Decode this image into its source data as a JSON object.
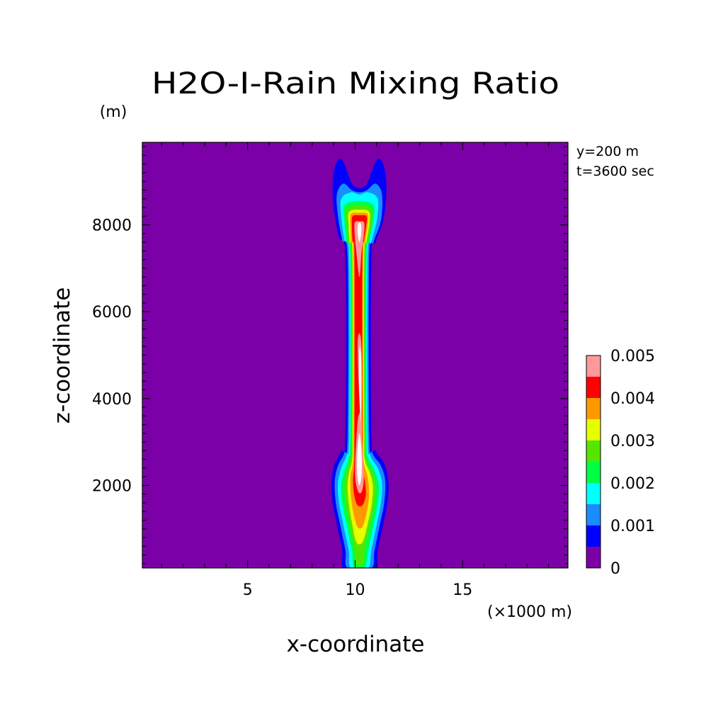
{
  "chart_data": {
    "type": "heatmap",
    "title": "H2O-I-Rain Mixing Ratio",
    "xlabel": "x-coordinate",
    "ylabel": "z-coordinate",
    "x_unit": "(×1000 m)",
    "y_unit": "(m)",
    "annotations": [
      "y=200 m",
      "t=3600 sec"
    ],
    "xlim": [
      0.1,
      19.9
    ],
    "ylim": [
      100,
      9900
    ],
    "x_ticks": [
      5,
      10,
      15
    ],
    "y_ticks": [
      2000,
      4000,
      6000,
      8000
    ],
    "x_minor_step": 1,
    "y_minor_step": 200,
    "grid": false,
    "colorbar": {
      "levels": [
        0,
        0.0005,
        0.001,
        0.0015,
        0.002,
        0.0025,
        0.003,
        0.0035,
        0.004,
        0.0045,
        0.005
      ],
      "colors": [
        "#7b00a8",
        "#0000ff",
        "#1a8cff",
        "#00ffff",
        "#00ff44",
        "#55e600",
        "#e6ff00",
        "#ff9900",
        "#ff0000",
        "#ff9999"
      ],
      "tick_labels": [
        "0",
        "0.001",
        "0.002",
        "0.003",
        "0.004",
        "0.005"
      ],
      "tick_values": [
        0,
        0.001,
        0.002,
        0.003,
        0.004,
        0.005
      ],
      "location": "right"
    },
    "background_color": "#7b00a8",
    "contours": [
      {
        "level": 0.0005,
        "color": "#0000ff",
        "points": [
          [
            9.5,
            100
          ],
          [
            9.4,
            500
          ],
          [
            9.15,
            1100
          ],
          [
            8.95,
            1600
          ],
          [
            8.9,
            2100
          ],
          [
            9.05,
            2500
          ],
          [
            9.35,
            2800
          ],
          [
            9.55,
            3200
          ],
          [
            9.55,
            7200
          ],
          [
            9.25,
            7700
          ],
          [
            9.05,
            8200
          ],
          [
            8.95,
            8700
          ],
          [
            9.0,
            9200
          ],
          [
            9.2,
            9500
          ],
          [
            9.45,
            9450
          ],
          [
            9.85,
            8950
          ],
          [
            10.2,
            8850
          ],
          [
            10.55,
            8950
          ],
          [
            10.95,
            9450
          ],
          [
            11.2,
            9500
          ],
          [
            11.4,
            9200
          ],
          [
            11.45,
            8700
          ],
          [
            11.3,
            8100
          ],
          [
            10.95,
            7600
          ],
          [
            10.75,
            7200
          ],
          [
            10.75,
            3200
          ],
          [
            10.95,
            2800
          ],
          [
            11.35,
            2500
          ],
          [
            11.55,
            2100
          ],
          [
            11.5,
            1600
          ],
          [
            11.3,
            1100
          ],
          [
            11.05,
            500
          ],
          [
            10.9,
            100
          ]
        ]
      },
      {
        "level": 0.001,
        "color": "#1a8cff",
        "points": [
          [
            9.65,
            100
          ],
          [
            9.55,
            500
          ],
          [
            9.3,
            1100
          ],
          [
            9.1,
            1600
          ],
          [
            9.05,
            2100
          ],
          [
            9.2,
            2450
          ],
          [
            9.5,
            2750
          ],
          [
            9.65,
            3200
          ],
          [
            9.65,
            7200
          ],
          [
            9.4,
            7650
          ],
          [
            9.2,
            8200
          ],
          [
            9.15,
            8700
          ],
          [
            9.45,
            8950
          ],
          [
            9.85,
            8800
          ],
          [
            10.2,
            8750
          ],
          [
            10.55,
            8800
          ],
          [
            10.95,
            8950
          ],
          [
            11.25,
            8700
          ],
          [
            11.2,
            8100
          ],
          [
            10.85,
            7600
          ],
          [
            10.65,
            7200
          ],
          [
            10.65,
            3200
          ],
          [
            10.8,
            2750
          ],
          [
            11.2,
            2450
          ],
          [
            11.4,
            2100
          ],
          [
            11.35,
            1600
          ],
          [
            11.15,
            1100
          ],
          [
            10.9,
            500
          ],
          [
            10.75,
            100
          ]
        ]
      },
      {
        "level": 0.0015,
        "color": "#00ffff",
        "points": [
          [
            9.8,
            100
          ],
          [
            9.7,
            500
          ],
          [
            9.45,
            1100
          ],
          [
            9.25,
            1600
          ],
          [
            9.2,
            2050
          ],
          [
            9.35,
            2400
          ],
          [
            9.6,
            2700
          ],
          [
            9.72,
            3200
          ],
          [
            9.72,
            7200
          ],
          [
            9.5,
            7650
          ],
          [
            9.35,
            8200
          ],
          [
            9.35,
            8600
          ],
          [
            9.8,
            8750
          ],
          [
            10.2,
            8700
          ],
          [
            10.6,
            8750
          ],
          [
            11.05,
            8600
          ],
          [
            11.0,
            8100
          ],
          [
            10.75,
            7600
          ],
          [
            10.58,
            7200
          ],
          [
            10.58,
            3200
          ],
          [
            10.7,
            2700
          ],
          [
            11.05,
            2400
          ],
          [
            11.25,
            2050
          ],
          [
            11.2,
            1600
          ],
          [
            11.0,
            1100
          ],
          [
            10.75,
            500
          ],
          [
            10.6,
            100
          ]
        ]
      },
      {
        "level": 0.002,
        "color": "#00ff44",
        "points": [
          [
            9.95,
            100
          ],
          [
            9.85,
            500
          ],
          [
            9.6,
            1100
          ],
          [
            9.4,
            1600
          ],
          [
            9.35,
            2000
          ],
          [
            9.5,
            2350
          ],
          [
            9.7,
            2650
          ],
          [
            9.78,
            3200
          ],
          [
            9.78,
            7200
          ],
          [
            9.6,
            7600
          ],
          [
            9.5,
            8100
          ],
          [
            9.5,
            8450
          ],
          [
            10.2,
            8550
          ],
          [
            10.85,
            8450
          ],
          [
            10.85,
            8100
          ],
          [
            10.65,
            7600
          ],
          [
            10.52,
            7200
          ],
          [
            10.52,
            3200
          ],
          [
            10.6,
            2650
          ],
          [
            10.9,
            2350
          ],
          [
            11.1,
            2000
          ],
          [
            11.05,
            1600
          ],
          [
            10.85,
            1100
          ],
          [
            10.6,
            500
          ],
          [
            10.45,
            100
          ]
        ]
      },
      {
        "level": 0.0025,
        "color": "#55e600",
        "points": [
          [
            10.05,
            200
          ],
          [
            9.95,
            600
          ],
          [
            9.75,
            1100
          ],
          [
            9.55,
            1600
          ],
          [
            9.5,
            2000
          ],
          [
            9.6,
            2300
          ],
          [
            9.78,
            2600
          ],
          [
            9.83,
            3200
          ],
          [
            9.83,
            7200
          ],
          [
            9.68,
            7600
          ],
          [
            9.6,
            8000
          ],
          [
            9.62,
            8350
          ],
          [
            10.2,
            8450
          ],
          [
            10.75,
            8350
          ],
          [
            10.75,
            8000
          ],
          [
            10.58,
            7600
          ],
          [
            10.47,
            7200
          ],
          [
            10.47,
            3200
          ],
          [
            10.52,
            2600
          ],
          [
            10.8,
            2300
          ],
          [
            10.95,
            2000
          ],
          [
            10.9,
            1600
          ],
          [
            10.7,
            1100
          ],
          [
            10.45,
            600
          ],
          [
            10.35,
            200
          ]
        ]
      },
      {
        "level": 0.003,
        "color": "#e6ff00",
        "points": [
          [
            10.05,
            700
          ],
          [
            9.85,
            1150
          ],
          [
            9.7,
            1600
          ],
          [
            9.65,
            2000
          ],
          [
            9.72,
            2300
          ],
          [
            9.86,
            2600
          ],
          [
            9.88,
            3200
          ],
          [
            9.88,
            7200
          ],
          [
            9.75,
            7600
          ],
          [
            9.7,
            8000
          ],
          [
            9.72,
            8300
          ],
          [
            10.2,
            8350
          ],
          [
            10.65,
            8300
          ],
          [
            10.65,
            8000
          ],
          [
            10.52,
            7600
          ],
          [
            10.42,
            7200
          ],
          [
            10.42,
            3200
          ],
          [
            10.45,
            2600
          ],
          [
            10.68,
            2300
          ],
          [
            10.82,
            2000
          ],
          [
            10.78,
            1600
          ],
          [
            10.6,
            1150
          ],
          [
            10.35,
            700
          ]
        ]
      },
      {
        "level": 0.0035,
        "color": "#ff9900",
        "points": [
          [
            10.1,
            1050
          ],
          [
            9.9,
            1400
          ],
          [
            9.8,
            1800
          ],
          [
            9.78,
            2200
          ],
          [
            9.9,
            2550
          ],
          [
            9.92,
            3200
          ],
          [
            9.92,
            7200
          ],
          [
            9.82,
            7600
          ],
          [
            9.78,
            8000
          ],
          [
            9.8,
            8250
          ],
          [
            10.2,
            8280
          ],
          [
            10.58,
            8250
          ],
          [
            10.58,
            8000
          ],
          [
            10.46,
            7600
          ],
          [
            10.38,
            7200
          ],
          [
            10.38,
            3200
          ],
          [
            10.4,
            2550
          ],
          [
            10.58,
            2200
          ],
          [
            10.65,
            1800
          ],
          [
            10.55,
            1400
          ],
          [
            10.35,
            1050
          ]
        ]
      },
      {
        "level": 0.004,
        "color": "#ff0000",
        "points": [
          [
            10.1,
            1550
          ],
          [
            9.95,
            1800
          ],
          [
            9.9,
            2100
          ],
          [
            9.95,
            2450
          ],
          [
            9.97,
            3200
          ],
          [
            9.97,
            7200
          ],
          [
            9.88,
            7600
          ],
          [
            9.85,
            8000
          ],
          [
            9.88,
            8200
          ],
          [
            10.2,
            8220
          ],
          [
            10.52,
            8200
          ],
          [
            10.52,
            8000
          ],
          [
            10.4,
            7600
          ],
          [
            10.33,
            7200
          ],
          [
            10.33,
            3200
          ],
          [
            10.35,
            2450
          ],
          [
            10.45,
            2100
          ],
          [
            10.5,
            1800
          ],
          [
            10.35,
            1550
          ]
        ]
      },
      {
        "level": 0.0045,
        "color": "#ff9999",
        "points": [
          [
            10.25,
            3500
          ],
          [
            10.15,
            4500
          ],
          [
            10.12,
            5300
          ],
          [
            10.2,
            5500
          ],
          [
            10.28,
            5300
          ],
          [
            10.32,
            4500
          ],
          [
            10.3,
            3500
          ]
        ]
      },
      {
        "level": 0.0045,
        "color": "#ff9999",
        "points": [
          [
            10.15,
            1850
          ],
          [
            10.02,
            2100
          ],
          [
            10.0,
            2500
          ],
          [
            10.05,
            3000
          ],
          [
            10.15,
            3600
          ],
          [
            10.3,
            3600
          ],
          [
            10.32,
            3000
          ],
          [
            10.38,
            2500
          ],
          [
            10.4,
            2100
          ],
          [
            10.3,
            1850
          ]
        ]
      },
      {
        "level": 0.0045,
        "color": "#ff9999",
        "points": [
          [
            10.05,
            7400
          ],
          [
            9.98,
            7750
          ],
          [
            9.98,
            8050
          ],
          [
            10.2,
            8080
          ],
          [
            10.42,
            8050
          ],
          [
            10.4,
            7750
          ],
          [
            10.3,
            7400
          ],
          [
            10.2,
            6800
          ]
        ]
      },
      {
        "level": 0.005,
        "color": "#ffffff",
        "points": [
          [
            10.2,
            2000
          ],
          [
            10.1,
            2250
          ],
          [
            10.1,
            2750
          ],
          [
            10.2,
            3200
          ],
          [
            10.3,
            2750
          ],
          [
            10.3,
            2250
          ]
        ]
      },
      {
        "level": 0.005,
        "color": "#ffffff",
        "points": [
          [
            10.24,
            3600
          ],
          [
            10.18,
            4400
          ],
          [
            10.18,
            5000
          ],
          [
            10.22,
            5200
          ],
          [
            10.27,
            5000
          ],
          [
            10.28,
            4400
          ],
          [
            10.27,
            3600
          ]
        ]
      },
      {
        "level": 0.005,
        "color": "#ffffff",
        "points": [
          [
            10.2,
            7600
          ],
          [
            10.12,
            7800
          ],
          [
            10.13,
            8000
          ],
          [
            10.2,
            8050
          ],
          [
            10.28,
            8000
          ],
          [
            10.28,
            7800
          ]
        ]
      }
    ]
  }
}
